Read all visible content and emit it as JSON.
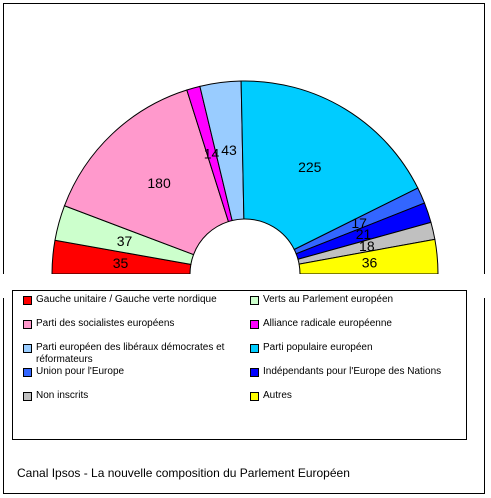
{
  "caption": "Canal Ipsos - La nouvelle composition du Parlement Européen",
  "chart_data": {
    "type": "pie",
    "style": "semicircle",
    "grid": false,
    "legend_position": "bottom",
    "slices": [
      {
        "label": "Gauche unitaire / Gauche verte nordique",
        "value": 35,
        "color": "#ff0000"
      },
      {
        "label": "Verts au Parlement européen",
        "value": 37,
        "color": "#ccffcc"
      },
      {
        "label": "Parti des socialistes européens",
        "value": 180,
        "color": "#ff99cc"
      },
      {
        "label": "Alliance radicale européenne",
        "value": 14,
        "color": "#ff00ff"
      },
      {
        "label": "Parti européen des libéraux démocrates et réformateurs",
        "value": 43,
        "color": "#99ccff"
      },
      {
        "label": "Parti populaire européen",
        "value": 225,
        "color": "#00ccff"
      },
      {
        "label": "Union pour l'Europe",
        "value": 17,
        "color": "#3366ff"
      },
      {
        "label": "Indépendants pour l'Europe des Nations",
        "value": 21,
        "color": "#0000ff"
      },
      {
        "label": "Non inscrits",
        "value": 18,
        "color": "#c0c0c0"
      },
      {
        "label": "Autres",
        "value": 36,
        "color": "#ffff00"
      }
    ]
  }
}
